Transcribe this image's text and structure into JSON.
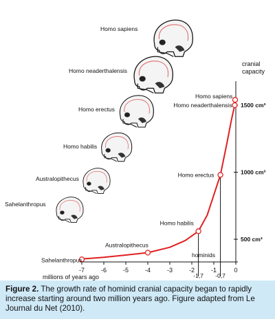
{
  "chart_data": {
    "type": "line",
    "title": "",
    "xlabel": "millions of years ago",
    "ylabel": "cranial capacity",
    "x_ticks": [
      "-7",
      "-6",
      "-5",
      "-4",
      "-3",
      "-2",
      "-1",
      "0"
    ],
    "y_ticks": [
      "500 cm³",
      "1000 cm³",
      "1500 cm³"
    ],
    "xlim": [
      -7,
      0
    ],
    "ylim": [
      350,
      1600
    ],
    "hominids_label": "hominids",
    "callouts": [
      "-1,7",
      "-0,7"
    ],
    "series": [
      {
        "color": "#e01f1f",
        "points": [
          {
            "x": -7.0,
            "y": 350,
            "label": "Sahelanthropus"
          },
          {
            "x": -4.0,
            "y": 400,
            "label": "Australopithecus"
          },
          {
            "x": -1.7,
            "y": 560,
            "label": "Homo habilis"
          },
          {
            "x": -0.7,
            "y": 980,
            "label": "Homo erectus"
          },
          {
            "x": -0.05,
            "y": 1500,
            "label": "Homo neaderthalensis"
          },
          {
            "x": -0.03,
            "y": 1540,
            "label": "Homo sapiens"
          }
        ]
      }
    ],
    "skull_labels": [
      "Homo sapiens",
      "Homo neaderthalensis",
      "Homo erectus",
      "Homo habilis",
      "Australopithecus",
      "Sahelanthropus"
    ]
  },
  "caption": {
    "label": "Figure 2.",
    "text": "  The growth rate of hominid cranial capacity began to rapidly increase starting around two million years ago.  Figure adapted from Le Journal du Net (2010)."
  },
  "colors": {
    "curve": "#e01f1f",
    "caption_bg": "#cfe9f7"
  }
}
